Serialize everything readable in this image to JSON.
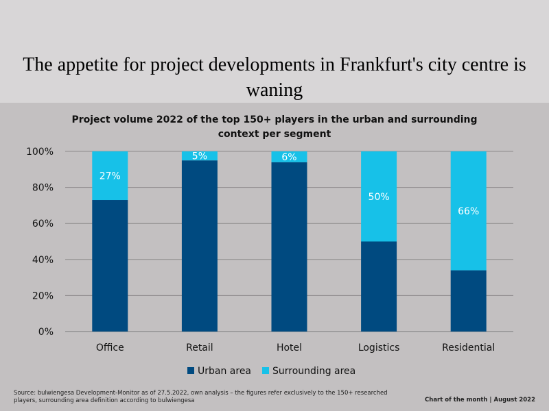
{
  "headline": "The appetite for project developments in Frankfurt's city centre is waning",
  "source_note": "Source: bulwiengesa Development-Monitor as of 27.5.2022, own analysis – the figures refer exclusively to the 150+ researched players, surrounding area definition according to bulwiengesa",
  "footer_tag": "Chart of the month | August 2022",
  "chart_data": {
    "type": "bar",
    "stacked": true,
    "title": "Project volume 2022 of the top 150+ players in the urban and surrounding context per segment",
    "categories": [
      "Office",
      "Retail",
      "Hotel",
      "Logistics",
      "Residential"
    ],
    "series": [
      {
        "name": "Urban area",
        "values": [
          73,
          95,
          94,
          50,
          34
        ],
        "color": "#004a80"
      },
      {
        "name": "Surrounding area",
        "values": [
          27,
          5,
          6,
          50,
          66
        ],
        "color": "#17c1e8",
        "labels": [
          "27%",
          "5%",
          "6%",
          "50%",
          "66%"
        ]
      }
    ],
    "ylim": [
      0,
      100
    ],
    "yticks": [
      "0%",
      "20%",
      "40%",
      "60%",
      "80%",
      "100%"
    ],
    "grid": true,
    "legend": "bottom"
  }
}
